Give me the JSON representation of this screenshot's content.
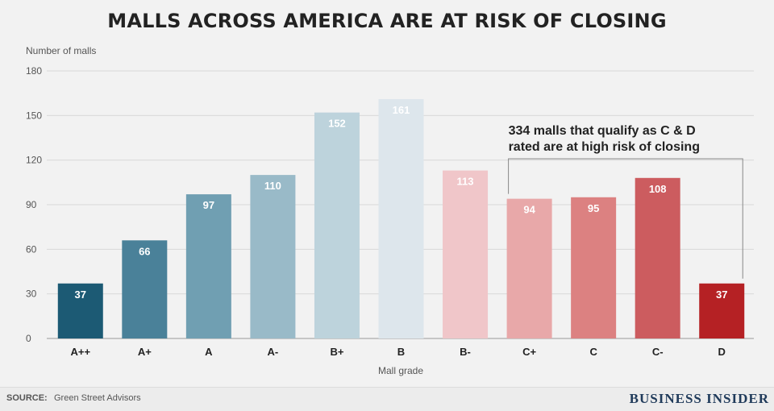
{
  "title": "MALLS ACROSS AMERICA ARE AT RISK OF CLOSING",
  "chart_data": {
    "type": "bar",
    "ylabel": "Number of malls",
    "xlabel": "Mall grade",
    "ylim": [
      0,
      180
    ],
    "yticks": [
      0,
      30,
      60,
      90,
      120,
      150,
      180
    ],
    "grid": true,
    "categories": [
      "A++",
      "A+",
      "A",
      "A-",
      "B+",
      "B",
      "B-",
      "C+",
      "C",
      "C-",
      "D"
    ],
    "values": [
      37,
      66,
      97,
      110,
      152,
      161,
      113,
      94,
      95,
      108,
      37
    ],
    "colors": [
      "#1c5a74",
      "#4a8199",
      "#709fb2",
      "#99bac8",
      "#bdd3dc",
      "#dde6ec",
      "#f0c6c9",
      "#e8a8a9",
      "#dc8181",
      "#cc5c5f",
      "#b52124"
    ],
    "data_labels": true,
    "annotation": {
      "line1": "334 malls that qualify as C & D",
      "line2": "rated are at high risk of closing",
      "spans": [
        "C+",
        "D"
      ]
    }
  },
  "footer": {
    "source_label": "SOURCE:",
    "source_text": "Green Street Advisors",
    "brand": "BUSINESS INSIDER"
  }
}
